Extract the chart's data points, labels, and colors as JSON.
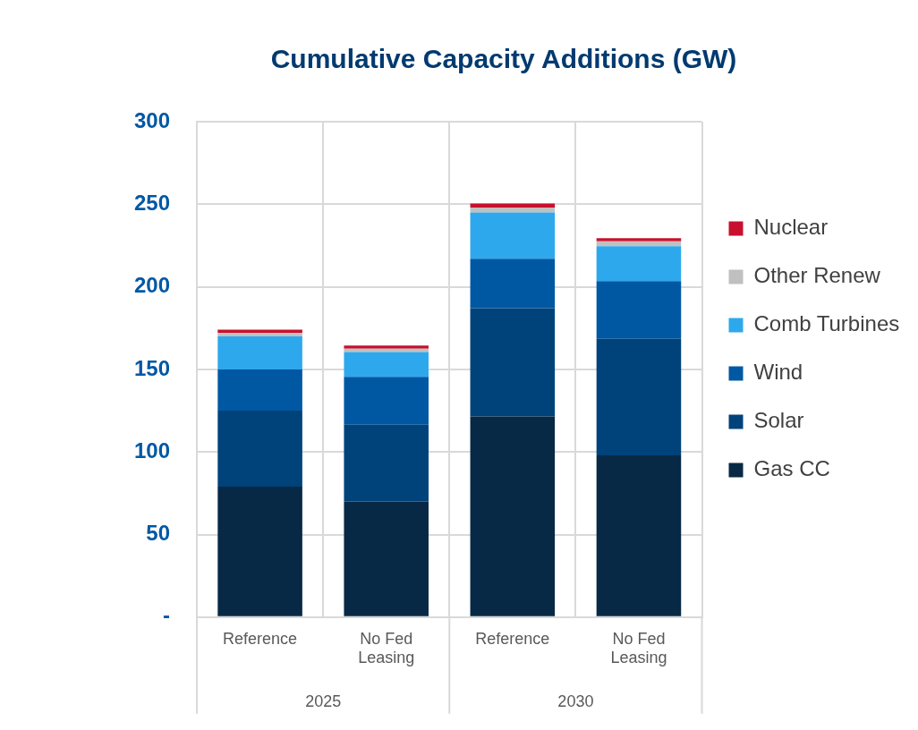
{
  "chart_data": {
    "type": "bar",
    "title": "Cumulative Capacity Additions (GW)",
    "categories": [
      "Reference",
      "No Fed Leasing",
      "Reference",
      "No Fed Leasing"
    ],
    "stacked": true,
    "series": [
      {
        "name": "Gas CC",
        "color": "#072945",
        "values": [
          79,
          70,
          121.5,
          98
        ]
      },
      {
        "name": "Solar",
        "color": "#00427a",
        "values": [
          46,
          46.5,
          65.5,
          70.5
        ]
      },
      {
        "name": "Wind",
        "color": "#0058a3",
        "values": [
          25,
          29,
          30,
          35
        ]
      },
      {
        "name": "Comb Turbines",
        "color": "#2ea8ec",
        "values": [
          20,
          15,
          28,
          21
        ]
      },
      {
        "name": "Other Renew",
        "color": "#c0c0c0",
        "values": [
          2,
          2,
          3,
          3
        ]
      },
      {
        "name": "Nuclear",
        "color": "#c8102e",
        "values": [
          2,
          2,
          2.5,
          2
        ]
      }
    ],
    "ylim": [
      0,
      300
    ],
    "yticks": [
      {
        "value": 0,
        "label": "-"
      },
      50,
      100,
      150,
      200,
      250,
      300
    ],
    "grid": true,
    "legend": "right",
    "annotations": [
      "2025",
      "2030"
    ]
  }
}
